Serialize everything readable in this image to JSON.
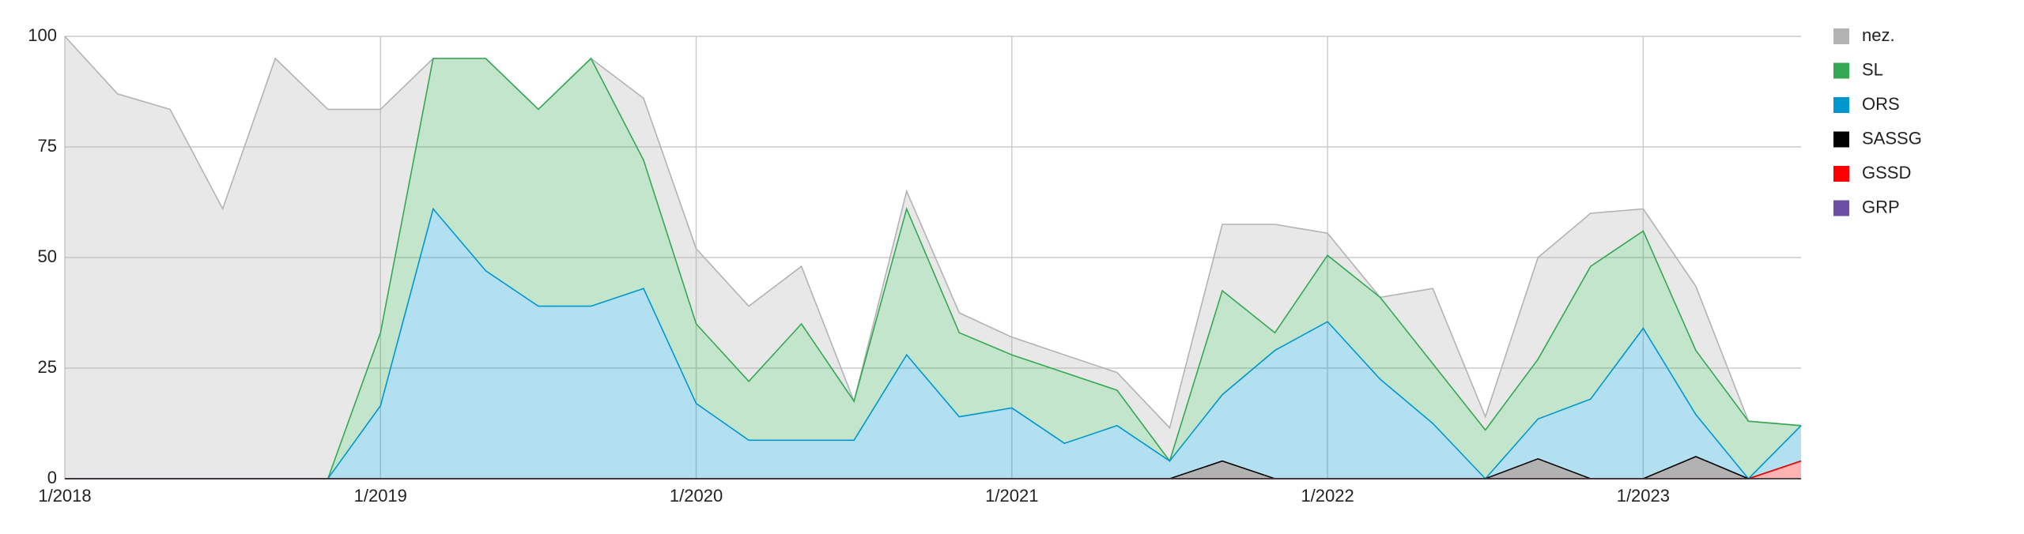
{
  "chart_data": {
    "type": "stacked-area",
    "x": [
      "1/2018",
      "3/2018",
      "5/2018",
      "7/2018",
      "9/2018",
      "11/2018",
      "1/2019",
      "3/2019",
      "5/2019",
      "7/2019",
      "9/2019",
      "11/2019",
      "1/2020",
      "3/2020",
      "5/2020",
      "7/2020",
      "9/2020",
      "11/2020",
      "1/2021",
      "3/2021",
      "5/2021",
      "7/2021",
      "9/2021",
      "11/2021",
      "1/2022",
      "3/2022",
      "5/2022",
      "7/2022",
      "9/2022",
      "11/2022",
      "1/2023",
      "3/2023",
      "5/2023",
      "7/2023"
    ],
    "xlim": [
      "1/2018",
      "7/2023"
    ],
    "xticks": [
      "1/2018",
      "1/2019",
      "1/2020",
      "1/2021",
      "1/2022",
      "1/2023"
    ],
    "ylim": [
      0,
      100
    ],
    "yticks": [
      0,
      25,
      50,
      75,
      100
    ],
    "grid": true,
    "legend": "right",
    "series": [
      {
        "name": "nez.",
        "color": "#b3b3b3",
        "values": [
          100,
          87,
          83.5,
          61,
          95,
          83.5,
          50.5,
          0,
          0,
          0,
          0,
          14,
          17,
          17,
          13,
          0,
          4,
          4.5,
          4,
          4,
          4,
          7.5,
          15,
          24.5,
          5,
          0,
          17,
          3,
          23,
          12,
          5,
          14.5,
          0,
          0
        ]
      },
      {
        "name": "SL",
        "color": "#34a853",
        "values": [
          0,
          0,
          0,
          0,
          0,
          0,
          16.5,
          34,
          48,
          44.5,
          56,
          29,
          18,
          13.3,
          26.3,
          8.8,
          33,
          19,
          12,
          16,
          8,
          0,
          23.5,
          4,
          15,
          18.5,
          13.5,
          11,
          13.5,
          30,
          22,
          14.5,
          13,
          0
        ]
      },
      {
        "name": "ORS",
        "color": "#0097d0",
        "values": [
          0,
          0,
          0,
          0,
          0,
          0,
          16.5,
          61,
          47,
          39,
          39,
          43,
          17,
          8.7,
          8.7,
          8.7,
          28,
          14,
          16,
          8,
          12,
          4,
          15,
          29,
          35.5,
          22.5,
          12.5,
          0,
          9,
          18,
          34,
          9.5,
          0,
          8
        ]
      },
      {
        "name": "SASSG",
        "color": "#000000",
        "values": [
          0,
          0,
          0,
          0,
          0,
          0,
          0,
          0,
          0,
          0,
          0,
          0,
          0,
          0,
          0,
          0,
          0,
          0,
          0,
          0,
          0,
          0,
          4,
          0,
          0,
          0,
          0,
          0,
          4.5,
          0,
          0,
          5,
          0,
          0
        ]
      },
      {
        "name": "GSSD",
        "color": "#ff0000",
        "values": [
          0,
          0,
          0,
          0,
          0,
          0,
          0,
          0,
          0,
          0,
          0,
          0,
          0,
          0,
          0,
          0,
          0,
          0,
          0,
          0,
          0,
          0,
          0,
          0,
          0,
          0,
          0,
          0,
          0,
          0,
          0,
          0,
          0,
          4
        ]
      },
      {
        "name": "GRP",
        "color": "#6a4fa3",
        "values": [
          0,
          0,
          0,
          0,
          0,
          0,
          0,
          0,
          0,
          0,
          0,
          0,
          0,
          0,
          0,
          0,
          0,
          0,
          0,
          0,
          0,
          0,
          0,
          0,
          0,
          0,
          0,
          0,
          0,
          0,
          0,
          0,
          0,
          0
        ]
      }
    ]
  }
}
